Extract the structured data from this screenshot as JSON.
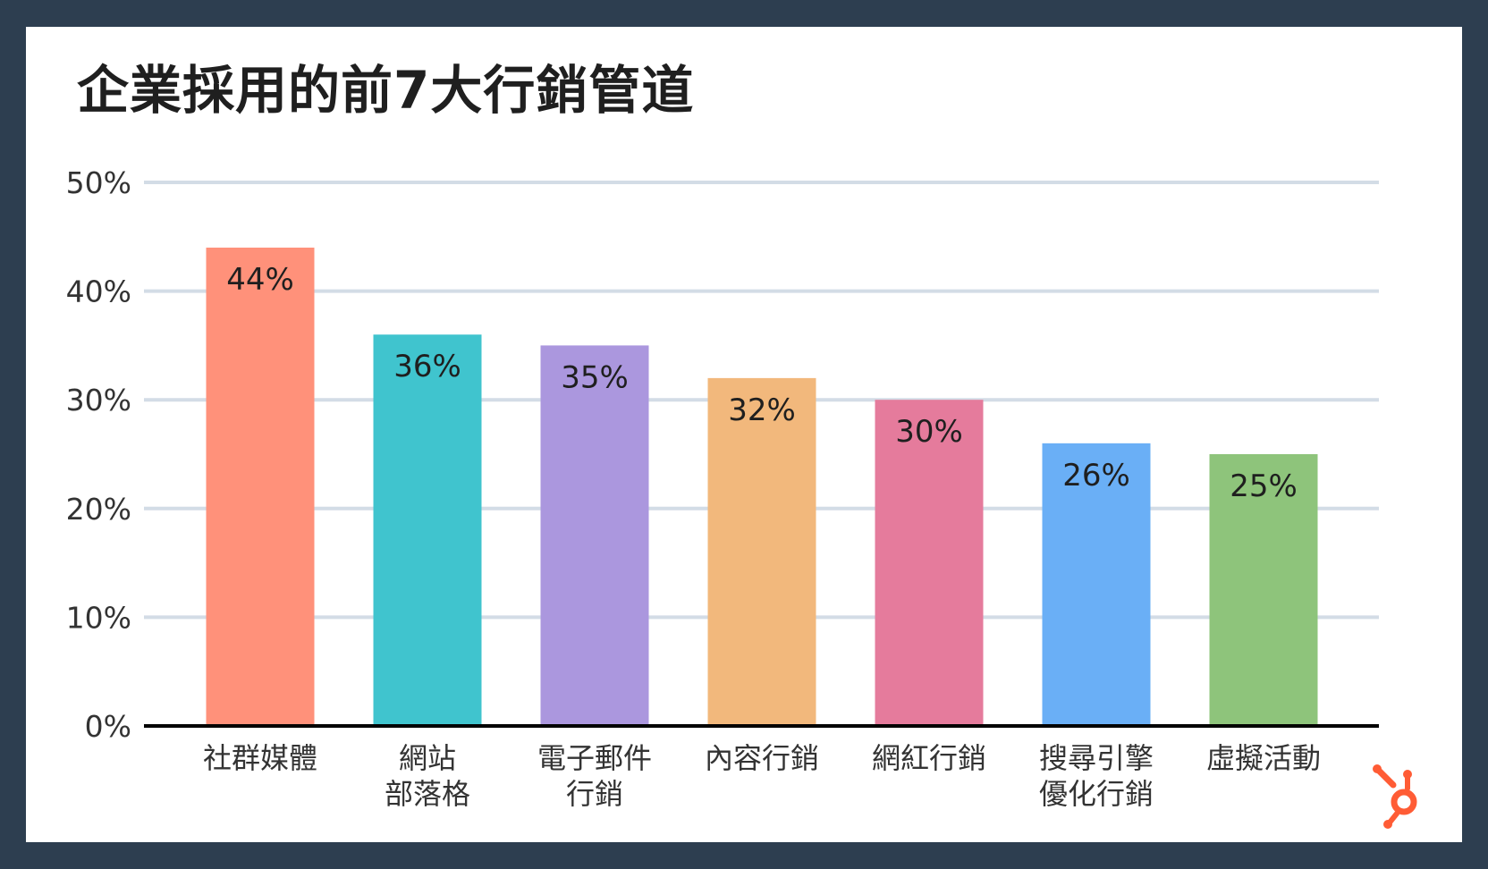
{
  "chart_data": {
    "type": "bar",
    "title": "企業採用的前7大行銷管道",
    "categories": [
      [
        "社群媒體"
      ],
      [
        "網站",
        "部落格"
      ],
      [
        "電子郵件",
        "行銷"
      ],
      [
        "內容行銷"
      ],
      [
        "網紅行銷"
      ],
      [
        "搜尋引擎",
        "優化行銷"
      ],
      [
        "虛擬活動"
      ]
    ],
    "values": [
      44,
      36,
      35,
      32,
      30,
      26,
      25
    ],
    "data_labels": [
      "44%",
      "36%",
      "35%",
      "32%",
      "30%",
      "26%",
      "25%"
    ],
    "colors": [
      "#ff917a",
      "#40c4ce",
      "#ab97de",
      "#f2b87c",
      "#e57b9c",
      "#6aaff6",
      "#8ec47b"
    ],
    "ylim": [
      0,
      50
    ],
    "yticks": [
      0,
      10,
      20,
      30,
      40,
      50
    ],
    "ytick_labels": [
      "0%",
      "10%",
      "20%",
      "30%",
      "40%",
      "50%"
    ],
    "xlabel": "",
    "ylabel": "",
    "grid": true,
    "legend": false
  },
  "brand": {
    "logo_icon": "hubspot-sprocket-icon",
    "logo_color": "#ff5c35"
  }
}
